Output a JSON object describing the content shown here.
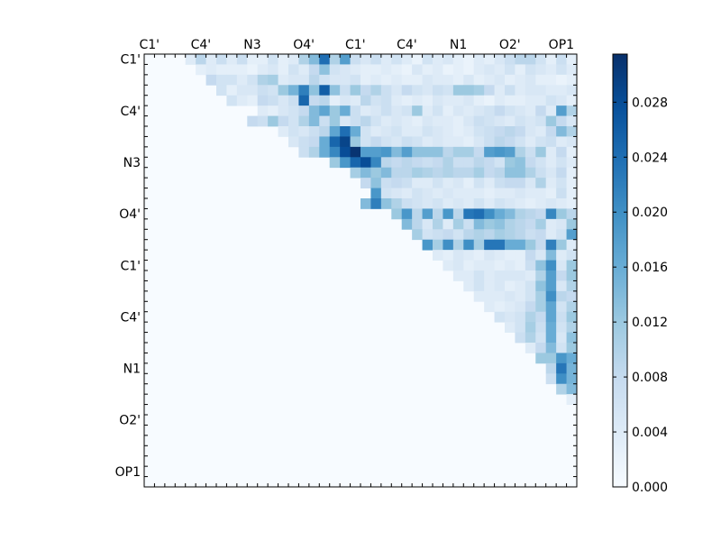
{
  "chart_data": {
    "type": "heatmap",
    "title": "",
    "xlabel": "",
    "ylabel": "",
    "n": 42,
    "cmap": "Blues",
    "vmin": 0.0,
    "vmax": 0.0315,
    "x_tick_labels": [
      "C1'",
      "C4'",
      "N3",
      "O4'",
      "C1'",
      "C4'",
      "N1",
      "O2'",
      "OP1"
    ],
    "y_tick_labels": [
      "C1'",
      "C4'",
      "N3",
      "O4'",
      "C1'",
      "C4'",
      "N1",
      "O2'",
      "OP1"
    ],
    "label_indices": [
      0,
      5,
      10,
      15,
      20,
      25,
      30,
      35,
      40
    ],
    "colorbar": {
      "ticks": [
        0.0,
        0.004,
        0.008,
        0.012,
        0.016,
        0.02,
        0.024,
        0.028
      ],
      "tick_labels": [
        "0.000",
        "0.004",
        "0.008",
        "0.012",
        "0.016",
        "0.020",
        "0.024",
        "0.028"
      ]
    },
    "lower_triangle_value": 0.0,
    "upper_triangle_rows": [
      {
        "row": 0,
        "values": [
          0.004,
          0.009,
          0.004,
          0.007,
          0.004,
          0.007,
          0.003,
          0.003,
          0.006,
          0.003,
          0.004,
          0.01,
          0.014,
          0.024,
          0.01,
          0.018,
          0.007,
          0.005,
          0.007,
          0.004,
          0.006,
          0.004,
          0.002,
          0.006,
          0.004,
          0.005,
          0.003,
          0.002,
          0.004,
          0.003,
          0.005,
          0.007,
          0.009,
          0.009,
          0.006,
          0.003,
          0.007,
          0.003
        ]
      },
      {
        "row": 1,
        "values": [
          0.003,
          0.004,
          0.003,
          0.003,
          0.003,
          0.002,
          0.004,
          0.005,
          0.003,
          0.006,
          0.004,
          0.008,
          0.013,
          0.006,
          0.005,
          0.004,
          0.003,
          0.003,
          0.004,
          0.003,
          0.002,
          0.005,
          0.003,
          0.004,
          0.002,
          0.003,
          0.002,
          0.004,
          0.005,
          0.004,
          0.006,
          0.003,
          0.006,
          0.005,
          0.004,
          0.006,
          0.004
        ]
      },
      {
        "row": 2,
        "values": [
          0.008,
          0.006,
          0.006,
          0.004,
          0.006,
          0.01,
          0.011,
          0.004,
          0.005,
          0.005,
          0.009,
          0.006,
          0.005,
          0.005,
          0.006,
          0.003,
          0.004,
          0.003,
          0.004,
          0.003,
          0.003,
          0.005,
          0.004,
          0.004,
          0.003,
          0.005,
          0.003,
          0.004,
          0.005,
          0.003,
          0.004,
          0.005,
          0.003,
          0.003,
          0.002,
          0.003
        ]
      },
      {
        "row": 3,
        "values": [
          0.006,
          0.003,
          0.005,
          0.005,
          0.007,
          0.006,
          0.012,
          0.015,
          0.022,
          0.013,
          0.026,
          0.013,
          0.007,
          0.012,
          0.008,
          0.01,
          0.007,
          0.005,
          0.008,
          0.006,
          0.005,
          0.007,
          0.006,
          0.012,
          0.012,
          0.011,
          0.008,
          0.004,
          0.007,
          0.004,
          0.005,
          0.005,
          0.004,
          0.004,
          0.005
        ]
      },
      {
        "row": 4,
        "values": [
          0.006,
          0.004,
          0.003,
          0.008,
          0.007,
          0.005,
          0.007,
          0.025,
          0.008,
          0.009,
          0.003,
          0.005,
          0.004,
          0.009,
          0.006,
          0.007,
          0.004,
          0.003,
          0.004,
          0.003,
          0.005,
          0.004,
          0.004,
          0.005,
          0.003,
          0.002,
          0.004,
          0.003,
          0.003,
          0.004,
          0.004,
          0.006,
          0.005,
          0.003
        ]
      },
      {
        "row": 5,
        "values": [
          0.004,
          0.003,
          0.005,
          0.006,
          0.008,
          0.014,
          0.017,
          0.012,
          0.016,
          0.007,
          0.004,
          0.005,
          0.007,
          0.005,
          0.006,
          0.012,
          0.004,
          0.006,
          0.003,
          0.005,
          0.004,
          0.005,
          0.006,
          0.008,
          0.006,
          0.005,
          0.004,
          0.008,
          0.004,
          0.018,
          0.01
        ]
      },
      {
        "row": 6,
        "values": [
          0.008,
          0.007,
          0.012,
          0.008,
          0.006,
          0.01,
          0.014,
          0.007,
          0.012,
          0.005,
          0.007,
          0.009,
          0.006,
          0.004,
          0.005,
          0.004,
          0.003,
          0.005,
          0.004,
          0.004,
          0.003,
          0.005,
          0.007,
          0.006,
          0.005,
          0.004,
          0.006,
          0.005,
          0.006,
          0.012,
          0.008,
          0.005
        ]
      },
      {
        "row": 7,
        "values": [
          0.004,
          0.006,
          0.005,
          0.007,
          0.009,
          0.017,
          0.024,
          0.016,
          0.006,
          0.004,
          0.005,
          0.006,
          0.004,
          0.004,
          0.006,
          0.005,
          0.004,
          0.003,
          0.004,
          0.006,
          0.007,
          0.008,
          0.009,
          0.008,
          0.005,
          0.004,
          0.008,
          0.014,
          0.01
        ]
      },
      {
        "row": 8,
        "values": [
          0.005,
          0.007,
          0.008,
          0.016,
          0.025,
          0.029,
          0.012,
          0.006,
          0.008,
          0.006,
          0.005,
          0.007,
          0.006,
          0.004,
          0.005,
          0.004,
          0.004,
          0.003,
          0.005,
          0.007,
          0.009,
          0.008,
          0.006,
          0.004,
          0.006,
          0.007,
          0.004,
          0.005
        ]
      },
      {
        "row": 9,
        "values": [
          0.007,
          0.01,
          0.016,
          0.021,
          0.028,
          0.031,
          0.018,
          0.018,
          0.019,
          0.014,
          0.018,
          0.013,
          0.013,
          0.013,
          0.009,
          0.011,
          0.011,
          0.008,
          0.018,
          0.019,
          0.018,
          0.01,
          0.007,
          0.012,
          0.004,
          0.008,
          0.003
        ]
      },
      {
        "row": 10,
        "values": [
          0.012,
          0.019,
          0.025,
          0.028,
          0.021,
          0.009,
          0.008,
          0.009,
          0.008,
          0.007,
          0.008,
          0.01,
          0.007,
          0.007,
          0.009,
          0.008,
          0.006,
          0.012,
          0.013,
          0.008,
          0.006,
          0.004,
          0.006,
          0.004
        ]
      },
      {
        "row": 11,
        "values": [
          0.011,
          0.014,
          0.012,
          0.014,
          0.009,
          0.009,
          0.011,
          0.01,
          0.009,
          0.01,
          0.009,
          0.009,
          0.011,
          0.008,
          0.009,
          0.013,
          0.013,
          0.01,
          0.007,
          0.005,
          0.008,
          0.003
        ]
      },
      {
        "row": 12,
        "values": [
          0.008,
          0.013,
          0.007,
          0.008,
          0.007,
          0.004,
          0.004,
          0.006,
          0.004,
          0.005,
          0.003,
          0.006,
          0.004,
          0.007,
          0.008,
          0.008,
          0.005,
          0.01,
          0.004,
          0.006,
          0.003
        ]
      },
      {
        "row": 13,
        "values": [
          0.019,
          0.006,
          0.005,
          0.004,
          0.006,
          0.005,
          0.004,
          0.005,
          0.004,
          0.004,
          0.004,
          0.003,
          0.004,
          0.004,
          0.005,
          0.004,
          0.004,
          0.003,
          0.007,
          0.003
        ]
      },
      {
        "row": 14,
        "values": [
          0.014,
          0.022,
          0.013,
          0.01,
          0.007,
          0.006,
          0.005,
          0.006,
          0.004,
          0.005,
          0.004,
          0.006,
          0.004,
          0.006,
          0.005,
          0.004,
          0.003,
          0.004,
          0.005,
          0.004,
          0.003
        ]
      },
      {
        "row": 15,
        "values": [
          0.012,
          0.019,
          0.009,
          0.018,
          0.009,
          0.019,
          0.009,
          0.023,
          0.024,
          0.02,
          0.016,
          0.014,
          0.01,
          0.009,
          0.008,
          0.021,
          0.012,
          0.009
        ]
      },
      {
        "row": 16,
        "values": [
          0.014,
          0.009,
          0.005,
          0.01,
          0.004,
          0.011,
          0.007,
          0.014,
          0.012,
          0.013,
          0.01,
          0.009,
          0.008,
          0.011,
          0.004,
          0.005,
          0.012
        ]
      },
      {
        "row": 17,
        "values": [
          0.011,
          0.006,
          0.007,
          0.008,
          0.006,
          0.009,
          0.01,
          0.009,
          0.011,
          0.01,
          0.009,
          0.007,
          0.008,
          0.004,
          0.006,
          0.018
        ]
      },
      {
        "row": 18,
        "values": [
          0.019,
          0.011,
          0.02,
          0.01,
          0.02,
          0.011,
          0.023,
          0.023,
          0.016,
          0.016,
          0.012,
          0.008,
          0.022,
          0.012,
          0.004
        ]
      },
      {
        "row": 19,
        "values": [
          0.004,
          0.003,
          0.005,
          0.004,
          0.003,
          0.005,
          0.004,
          0.003,
          0.003,
          0.008,
          0.005,
          0.014,
          0.004,
          0.006
        ]
      },
      {
        "row": 20,
        "values": [
          0.004,
          0.005,
          0.003,
          0.004,
          0.004,
          0.003,
          0.004,
          0.003,
          0.007,
          0.013,
          0.02,
          0.005,
          0.012
        ]
      },
      {
        "row": 21,
        "values": [
          0.004,
          0.004,
          0.006,
          0.004,
          0.005,
          0.005,
          0.005,
          0.004,
          0.01,
          0.018,
          0.008,
          0.012
        ]
      },
      {
        "row": 22,
        "values": [
          0.004,
          0.006,
          0.004,
          0.005,
          0.003,
          0.004,
          0.006,
          0.013,
          0.018,
          0.005,
          0.01
        ]
      },
      {
        "row": 23,
        "values": [
          0.004,
          0.004,
          0.004,
          0.005,
          0.004,
          0.006,
          0.011,
          0.02,
          0.009,
          0.008
        ]
      },
      {
        "row": 24,
        "values": [
          0.004,
          0.003,
          0.004,
          0.005,
          0.008,
          0.011,
          0.017,
          0.006,
          0.01
        ]
      },
      {
        "row": 25,
        "values": [
          0.006,
          0.005,
          0.006,
          0.01,
          0.008,
          0.017,
          0.007,
          0.012
        ]
      },
      {
        "row": 26,
        "values": [
          0.004,
          0.006,
          0.011,
          0.007,
          0.016,
          0.006,
          0.01
        ]
      },
      {
        "row": 27,
        "values": [
          0.007,
          0.01,
          0.006,
          0.016,
          0.005,
          0.013
        ]
      },
      {
        "row": 28,
        "values": [
          0.004,
          0.008,
          0.014,
          0.006,
          0.012
        ]
      },
      {
        "row": 29,
        "values": [
          0.012,
          0.012,
          0.019,
          0.016
        ]
      },
      {
        "row": 30,
        "values": [
          0.009,
          0.023,
          0.015
        ]
      },
      {
        "row": 31,
        "values": [
          0.007,
          0.02,
          0.015
        ]
      },
      {
        "row": 32,
        "values": [
          0.01,
          0.014
        ]
      },
      {
        "row": 33,
        "values": [
          0.003
        ]
      }
    ]
  }
}
